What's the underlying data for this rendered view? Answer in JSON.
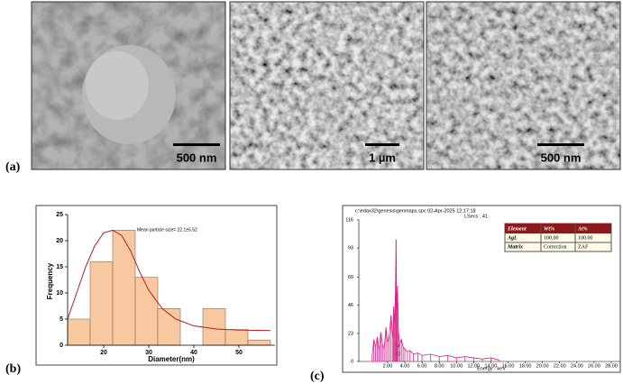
{
  "panel_labels": [
    "(a)",
    "(b)",
    "(c)"
  ],
  "scale_bars": [
    "500 nm",
    "1 µm",
    "500 nm"
  ],
  "chart_data": [
    {
      "type": "histogram",
      "annotation": "Mean particle size= 22.1±5.52",
      "xlabel": "Diameter(nm)",
      "ylabel": "Frequency",
      "bins": [
        12,
        17,
        22,
        27,
        32,
        37,
        42,
        47,
        52,
        57
      ],
      "values": [
        5,
        16,
        22,
        13,
        7,
        0,
        7,
        3,
        1
      ],
      "color": "#f8c8a0",
      "edge": "#8a6a50",
      "fit": {
        "x": [
          12,
          14,
          16,
          18,
          20,
          22,
          24,
          26,
          28,
          30,
          33,
          36,
          40,
          45,
          50,
          57
        ],
        "values": [
          5,
          10,
          15,
          19,
          21.5,
          22,
          21,
          18,
          14,
          10.5,
          7,
          5,
          3.7,
          3.1,
          2.9,
          2.8
        ],
        "color": "#b02020"
      },
      "xlim": [
        12,
        58
      ],
      "ylim": [
        0,
        25
      ],
      "xticks": [
        20,
        30,
        40,
        50
      ],
      "yticks": [
        0,
        5,
        10,
        15,
        20,
        25
      ]
    },
    {
      "type": "line",
      "header": "c:\\edax32\\genesis\\genmaps.spc  02-Apr-2025 12:17:18",
      "lsecs": "LSecs : 41",
      "xlabel": "Energy - keV",
      "peak_labels": [
        "Ag",
        "Ag"
      ],
      "table": {
        "header": [
          "Element",
          "Wt%",
          "At%"
        ],
        "rows": [
          [
            "AgL",
            "100.00",
            "100.00"
          ],
          [
            "Matrix",
            "Correction",
            "ZAF"
          ]
        ]
      },
      "series": [
        {
          "name": "spectrum",
          "color": "#e0208a",
          "x": [
            0.2,
            0.4,
            0.6,
            0.8,
            1.0,
            1.2,
            1.4,
            1.6,
            1.8,
            2.0,
            2.2,
            2.4,
            2.6,
            2.7,
            2.8,
            2.9,
            2.98,
            3.05,
            3.15,
            3.25,
            3.4,
            3.6,
            3.8,
            4.0,
            4.3,
            4.6,
            5.0,
            5.5,
            6.0,
            7.0,
            8.0,
            9.0,
            10.0,
            11.0,
            12.0,
            13.0,
            14.0,
            15.0
          ],
          "values": [
            5,
            18,
            12,
            20,
            9,
            24,
            14,
            10,
            28,
            15,
            22,
            38,
            18,
            45,
            30,
            55,
            100,
            40,
            62,
            25,
            15,
            18,
            12,
            10,
            8,
            9,
            6,
            7,
            5,
            6,
            4,
            5,
            3,
            4,
            3,
            2,
            3,
            1
          ]
        }
      ],
      "xlim": [
        -1.35,
        29.05
      ],
      "ylim": [
        0,
        116
      ],
      "xticks": [
        {
          "value": 2,
          "label": "2.00"
        },
        {
          "value": 4,
          "label": "4.00"
        },
        {
          "value": 6,
          "label": "6.00"
        },
        {
          "value": 8,
          "label": "8.00"
        },
        {
          "value": 10,
          "label": "10.00"
        },
        {
          "value": 12,
          "label": "12.00"
        },
        {
          "value": 14,
          "label": "14.00"
        },
        {
          "value": 16,
          "label": "16.00"
        },
        {
          "value": 18,
          "label": "18.00"
        },
        {
          "value": 20,
          "label": "20.00"
        },
        {
          "value": 22,
          "label": "22.00"
        },
        {
          "value": 24,
          "label": "24.00"
        },
        {
          "value": 26,
          "label": "26.00"
        },
        {
          "value": 28,
          "label": "28.00"
        }
      ],
      "yticks": [
        0,
        23,
        46,
        69,
        93,
        116
      ]
    }
  ]
}
